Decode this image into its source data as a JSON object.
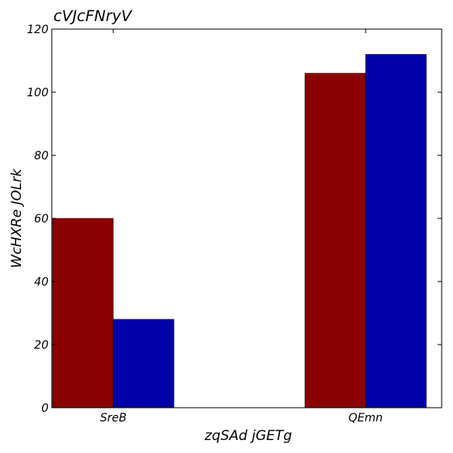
{
  "chart_data": {
    "type": "bar",
    "title": "cVJcFNryV",
    "xlabel": "zqSAd jGETg",
    "ylabel": "WcHXRe JOLrk",
    "categories": [
      "SreB",
      "QEmn"
    ],
    "series": [
      {
        "values": [
          60,
          106
        ],
        "color": "#8b0000"
      },
      {
        "values": [
          28,
          112
        ],
        "color": "#0000aa"
      }
    ],
    "ylim": [
      0,
      120
    ],
    "yticks": [
      0,
      20,
      40,
      60,
      80,
      100,
      120
    ],
    "grid": false,
    "legend": "none"
  }
}
